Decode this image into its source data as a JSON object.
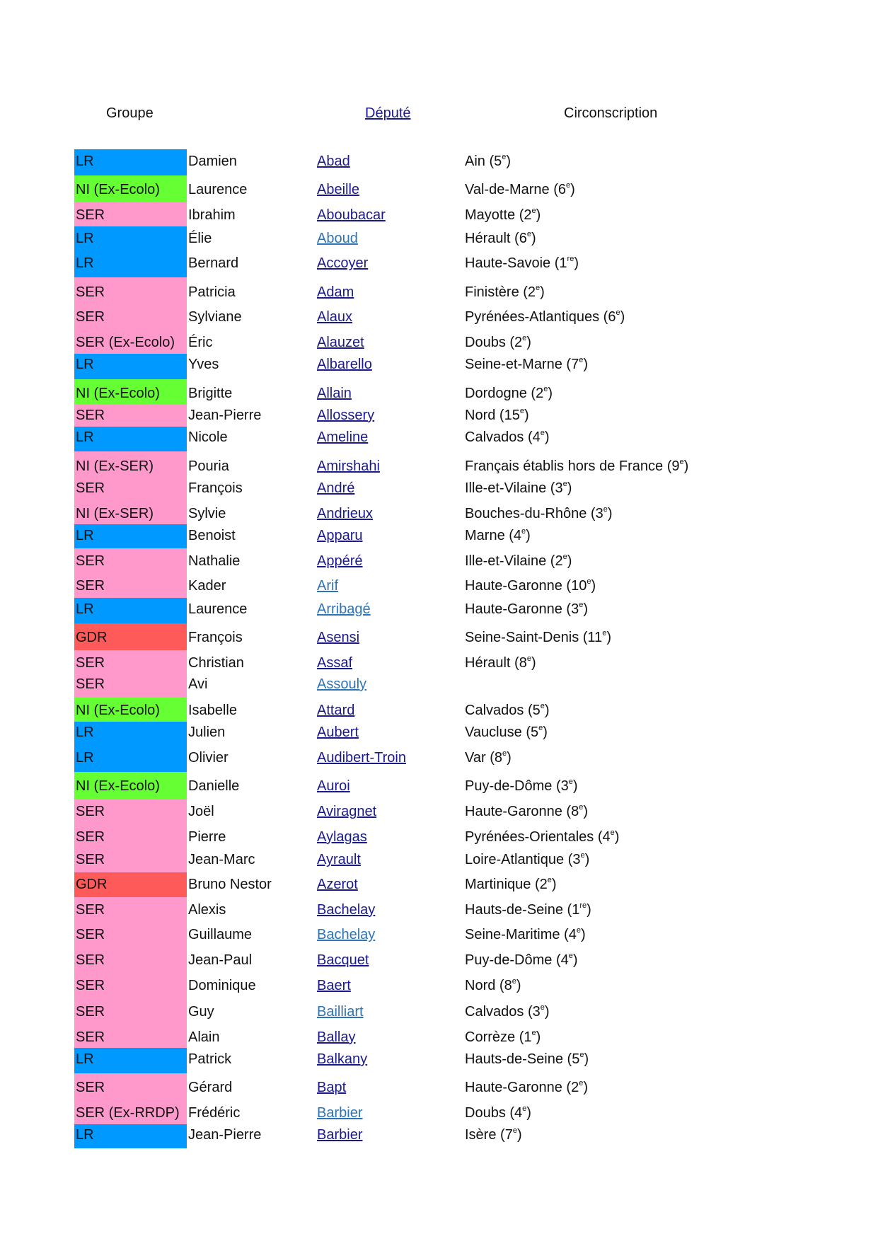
{
  "headers": {
    "groupe": "Groupe",
    "depute": "Député",
    "circonscription": "Circonscription"
  },
  "group_colors": {
    "LR": "#0099ff",
    "NI": "#66ff33",
    "SER": "#ff99cc",
    "GDR": "#ff5a5a"
  },
  "link_colors": {
    "default": "#1a1a8c",
    "alt": "#2e74b5"
  },
  "rows": [
    {
      "groupe": "LR",
      "color": "LR",
      "prenom": "Damien",
      "nom": "Abad",
      "link": "default",
      "circ": "Ain",
      "num": "5",
      "sup": "e"
    },
    {
      "groupe": "NI (Ex-Ecolo)",
      "color": "NI",
      "prenom": "Laurence",
      "nom": "Abeille",
      "link": "default",
      "circ": "Val-de-Marne",
      "num": "6",
      "sup": "e"
    },
    {
      "groupe": "SER",
      "color": "SER",
      "prenom": "Ibrahim",
      "nom": "Aboubacar",
      "link": "default",
      "circ": "Mayotte",
      "num": "2",
      "sup": "e"
    },
    {
      "groupe": "LR",
      "color": "LR",
      "prenom": "Élie",
      "nom": "Aboud",
      "link": "alt",
      "circ": "Hérault",
      "num": "6",
      "sup": "e"
    },
    {
      "groupe": "LR",
      "color": "LR",
      "prenom": "Bernard",
      "nom": "Accoyer",
      "link": "default",
      "circ": "Haute-Savoie",
      "num": "1",
      "sup": "re"
    },
    {
      "groupe": "SER",
      "color": "SER",
      "prenom": "Patricia",
      "nom": "Adam",
      "link": "default",
      "circ": "Finistère",
      "num": "2",
      "sup": "e"
    },
    {
      "groupe": "SER",
      "color": "SER",
      "prenom": "Sylviane",
      "nom": "Alaux",
      "link": "default",
      "circ": "Pyrénées-Atlantiques",
      "num": "6",
      "sup": "e"
    },
    {
      "groupe": "SER (Ex-Ecolo)",
      "color": "SER",
      "prenom": "Éric",
      "nom": "Alauzet",
      "link": "default",
      "circ": "Doubs",
      "num": "2",
      "sup": "e"
    },
    {
      "groupe": "LR",
      "color": "LR",
      "prenom": "Yves",
      "nom": "Albarello",
      "link": "default",
      "circ": "Seine-et-Marne",
      "num": "7",
      "sup": "e"
    },
    {
      "groupe": "NI (Ex-Ecolo)",
      "color": "NI",
      "prenom": "Brigitte",
      "nom": "Allain",
      "link": "default",
      "circ": "Dordogne",
      "num": "2",
      "sup": "e"
    },
    {
      "groupe": "SER",
      "color": "SER",
      "prenom": "Jean-Pierre",
      "nom": "Allossery",
      "link": "default",
      "circ": "Nord",
      "num": "15",
      "sup": "e"
    },
    {
      "groupe": "LR",
      "color": "LR",
      "prenom": "Nicole",
      "nom": "Ameline",
      "link": "default",
      "circ": "Calvados",
      "num": "4",
      "sup": "e"
    },
    {
      "groupe": "NI (Ex-SER)",
      "color": "SER",
      "prenom": "Pouria",
      "nom": "Amirshahi",
      "link": "default",
      "circ": "Français établis hors de France",
      "num": "9",
      "sup": "e"
    },
    {
      "groupe": "SER",
      "color": "SER",
      "prenom": "François",
      "nom": "André",
      "link": "default",
      "circ": "Ille-et-Vilaine",
      "num": "3",
      "sup": "e"
    },
    {
      "groupe": "NI (Ex-SER)",
      "color": "SER",
      "prenom": "Sylvie",
      "nom": "Andrieux",
      "link": "default",
      "circ": "Bouches-du-Rhône",
      "num": "3",
      "sup": "e"
    },
    {
      "groupe": "LR",
      "color": "LR",
      "prenom": "Benoist",
      "nom": "Apparu",
      "link": "default",
      "circ": "Marne",
      "num": "4",
      "sup": "e"
    },
    {
      "groupe": "SER",
      "color": "SER",
      "prenom": "Nathalie",
      "nom": "Appéré",
      "link": "default",
      "circ": "Ille-et-Vilaine",
      "num": "2",
      "sup": "e"
    },
    {
      "groupe": "SER",
      "color": "SER",
      "prenom": "Kader",
      "nom": "Arif",
      "link": "alt",
      "circ": "Haute-Garonne",
      "num": "10",
      "sup": "e"
    },
    {
      "groupe": "LR",
      "color": "LR",
      "prenom": "Laurence",
      "nom": "Arribagé",
      "link": "alt",
      "circ": "Haute-Garonne",
      "num": "3",
      "sup": "e"
    },
    {
      "groupe": "GDR",
      "color": "GDR",
      "prenom": "François",
      "nom": "Asensi",
      "link": "default",
      "circ": "Seine-Saint-Denis",
      "num": "11",
      "sup": "e"
    },
    {
      "groupe": "SER",
      "color": "SER",
      "prenom": "Christian",
      "nom": "Assaf",
      "link": "default",
      "circ": "Hérault",
      "num": "8",
      "sup": "e"
    },
    {
      "groupe": "SER",
      "color": "SER",
      "prenom": "Avi",
      "nom": "Assouly",
      "link": "alt",
      "circ": "",
      "num": "",
      "sup": ""
    },
    {
      "groupe": "NI (Ex-Ecolo)",
      "color": "NI",
      "prenom": "Isabelle",
      "nom": "Attard",
      "link": "default",
      "circ": "Calvados",
      "num": "5",
      "sup": "e"
    },
    {
      "groupe": "LR",
      "color": "LR",
      "prenom": "Julien",
      "nom": "Aubert",
      "link": "default",
      "circ": "Vaucluse",
      "num": "5",
      "sup": "e"
    },
    {
      "groupe": "LR",
      "color": "LR",
      "prenom": "Olivier",
      "nom": "Audibert-Troin",
      "link": "default",
      "circ": "Var",
      "num": "8",
      "sup": "e"
    },
    {
      "groupe": "NI (Ex-Ecolo)",
      "color": "NI",
      "prenom": "Danielle",
      "nom": "Auroi",
      "link": "default",
      "circ": "Puy-de-Dôme",
      "num": "3",
      "sup": "e"
    },
    {
      "groupe": "SER",
      "color": "SER",
      "prenom": "Joël",
      "nom": "Aviragnet",
      "link": "default",
      "circ": "Haute-Garonne",
      "num": "8",
      "sup": "e"
    },
    {
      "groupe": "SER",
      "color": "SER",
      "prenom": "Pierre",
      "nom": "Aylagas",
      "link": "default",
      "circ": "Pyrénées-Orientales",
      "num": "4",
      "sup": "e"
    },
    {
      "groupe": "SER",
      "color": "SER",
      "prenom": "Jean-Marc",
      "nom": "Ayrault",
      "link": "default",
      "circ": "Loire-Atlantique",
      "num": "3",
      "sup": "e"
    },
    {
      "groupe": "GDR",
      "color": "GDR",
      "prenom": "Bruno Nestor",
      "nom": "Azerot",
      "link": "default",
      "circ": "Martinique",
      "num": "2",
      "sup": "e"
    },
    {
      "groupe": "SER",
      "color": "SER",
      "prenom": "Alexis",
      "nom": "Bachelay",
      "link": "default",
      "circ": "Hauts-de-Seine",
      "num": "1",
      "sup": "re"
    },
    {
      "groupe": "SER",
      "color": "SER",
      "prenom": "Guillaume",
      "nom": "Bachelay",
      "link": "alt",
      "circ": "Seine-Maritime",
      "num": "4",
      "sup": "e"
    },
    {
      "groupe": "SER",
      "color": "SER",
      "prenom": "Jean-Paul",
      "nom": "Bacquet",
      "link": "default",
      "circ": "Puy-de-Dôme",
      "num": "4",
      "sup": "e"
    },
    {
      "groupe": "SER",
      "color": "SER",
      "prenom": "Dominique",
      "nom": "Baert",
      "link": "default",
      "circ": "Nord",
      "num": "8",
      "sup": "e"
    },
    {
      "groupe": "SER",
      "color": "SER",
      "prenom": "Guy",
      "nom": "Bailliart",
      "link": "alt",
      "circ": "Calvados",
      "num": "3",
      "sup": "e"
    },
    {
      "groupe": "SER",
      "color": "SER",
      "prenom": "Alain",
      "nom": "Ballay",
      "link": "default",
      "circ": "Corrèze",
      "num": "1",
      "sup": "e"
    },
    {
      "groupe": "LR",
      "color": "LR",
      "prenom": "Patrick",
      "nom": "Balkany",
      "link": "default",
      "circ": "Hauts-de-Seine",
      "num": "5",
      "sup": "e"
    },
    {
      "groupe": "SER",
      "color": "SER",
      "prenom": "Gérard",
      "nom": "Bapt",
      "link": "default",
      "circ": "Haute-Garonne",
      "num": "2",
      "sup": "e"
    },
    {
      "groupe": "SER (Ex-RRDP)",
      "color": "SER",
      "prenom": "Frédéric",
      "nom": "Barbier",
      "link": "alt",
      "circ": "Doubs",
      "num": "4",
      "sup": "e"
    },
    {
      "groupe": "LR",
      "color": "LR",
      "prenom": "Jean-Pierre",
      "nom": "Barbier",
      "link": "default",
      "circ": "Isère",
      "num": "7",
      "sup": "e"
    }
  ]
}
